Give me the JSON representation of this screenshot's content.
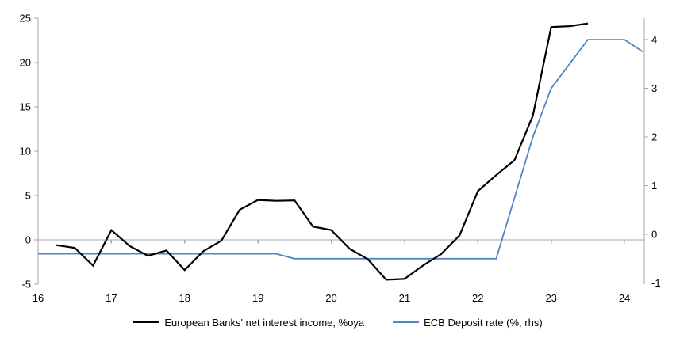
{
  "chart_data": {
    "type": "line",
    "title": "",
    "x_axis": {
      "ticks": [
        16,
        17,
        18,
        19,
        20,
        21,
        22,
        23,
        24
      ],
      "range": [
        16,
        24.27
      ],
      "tick_labels": [
        "16",
        "17",
        "18",
        "19",
        "20",
        "21",
        "22",
        "23",
        "24"
      ]
    },
    "left_axis": {
      "ticks": [
        -5,
        0,
        5,
        10,
        15,
        20,
        25
      ],
      "range": [
        -5,
        25
      ]
    },
    "right_axis": {
      "ticks": [
        -1,
        0,
        1,
        2,
        3,
        4
      ],
      "range": [
        -1.024,
        4.44
      ]
    },
    "grid": false,
    "legend_position": "bottom",
    "series": [
      {
        "name": "European Banks' net interest income, %oya",
        "axis": "left",
        "color": "#000000",
        "width": 2.2,
        "x": [
          16.25,
          16.5,
          16.75,
          17.0,
          17.25,
          17.5,
          17.75,
          18.0,
          18.25,
          18.5,
          18.75,
          19.0,
          19.25,
          19.5,
          19.75,
          20.0,
          20.25,
          20.5,
          20.75,
          21.0,
          21.25,
          21.5,
          21.75,
          22.0,
          22.25,
          22.5,
          22.75,
          23.0,
          23.25,
          23.5
        ],
        "values": [
          -0.6,
          -0.9,
          -2.9,
          1.1,
          -0.7,
          -1.8,
          -1.2,
          -3.4,
          -1.3,
          -0.1,
          3.4,
          4.5,
          4.4,
          4.45,
          1.5,
          1.1,
          -1.0,
          -2.2,
          -4.5,
          -4.4,
          -2.9,
          -1.6,
          0.5,
          5.5,
          7.3,
          9.0,
          14.0,
          24.0,
          24.1,
          24.4
        ]
      },
      {
        "name": "ECB Deposit rate (%, rhs)",
        "axis": "right",
        "color": "#4f86c5",
        "width": 1.8,
        "x": [
          16.0,
          16.25,
          16.5,
          16.75,
          17.0,
          17.25,
          17.5,
          17.75,
          18.0,
          18.25,
          18.5,
          18.75,
          19.0,
          19.25,
          19.5,
          19.75,
          20.0,
          20.25,
          20.5,
          20.75,
          21.0,
          21.25,
          21.5,
          21.75,
          22.0,
          22.25,
          22.5,
          22.75,
          23.0,
          23.25,
          23.5,
          23.75,
          24.0,
          24.25
        ],
        "values": [
          -0.4,
          -0.4,
          -0.4,
          -0.4,
          -0.4,
          -0.4,
          -0.4,
          -0.4,
          -0.4,
          -0.4,
          -0.4,
          -0.4,
          -0.4,
          -0.4,
          -0.5,
          -0.5,
          -0.5,
          -0.5,
          -0.5,
          -0.5,
          -0.5,
          -0.5,
          -0.5,
          -0.5,
          -0.5,
          -0.5,
          0.75,
          2.0,
          3.0,
          3.5,
          4.0,
          4.0,
          4.0,
          3.75
        ]
      }
    ]
  },
  "legend": {
    "series1_label": "European Banks' net interest income, %oya",
    "series2_label": "ECB Deposit rate (%, rhs)"
  },
  "colors": {
    "axis": "#a6a6a6",
    "zero_line": "#a6a6a6",
    "series1": "#000000",
    "series2": "#4f86c5",
    "text": "#000000"
  }
}
